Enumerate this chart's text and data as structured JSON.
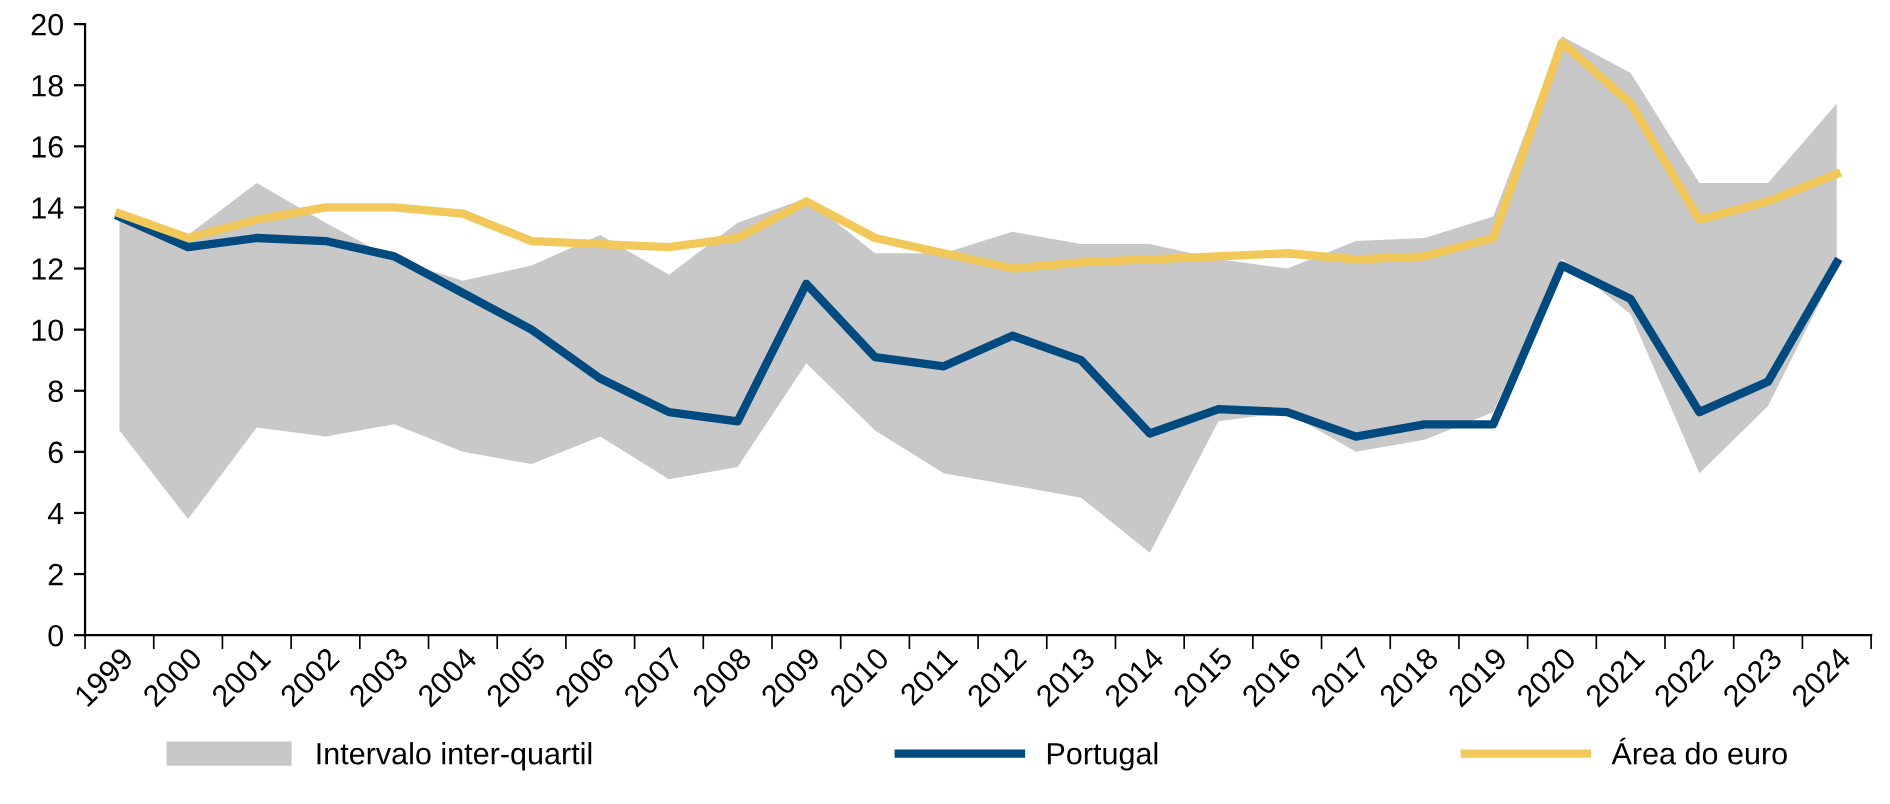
{
  "chart_data": {
    "type": "line",
    "categories": [
      "1999",
      "2000",
      "2001",
      "2002",
      "2003",
      "2004",
      "2005",
      "2006",
      "2007",
      "2008",
      "2009",
      "2010",
      "2011",
      "2012",
      "2013",
      "2014",
      "2015",
      "2016",
      "2017",
      "2018",
      "2019",
      "2020",
      "2021",
      "2022",
      "2023",
      "2024"
    ],
    "series": [
      {
        "name": "Intervalo inter-quartil",
        "type": "area",
        "color": "#c8c8c8",
        "values": [
          null,
          null,
          null,
          null,
          null,
          null,
          null,
          null,
          null,
          null,
          null,
          null,
          null,
          null,
          null,
          null,
          null,
          null,
          null,
          null,
          null,
          null,
          null,
          null,
          null,
          null
        ],
        "lower": [
          6.7,
          3.8,
          6.8,
          6.5,
          6.9,
          6.0,
          5.6,
          6.5,
          5.1,
          5.5,
          8.9,
          6.7,
          5.3,
          4.9,
          4.5,
          2.7,
          7.0,
          7.3,
          6.0,
          6.4,
          7.3,
          12.3,
          10.5,
          5.3,
          7.5,
          12.0
        ],
        "upper": [
          13.7,
          13.1,
          14.8,
          13.5,
          12.3,
          11.6,
          12.1,
          13.1,
          11.8,
          13.5,
          14.3,
          12.5,
          12.5,
          13.2,
          12.8,
          12.8,
          12.3,
          12.0,
          12.9,
          13.0,
          13.7,
          19.6,
          18.4,
          14.8,
          14.8,
          17.4
        ]
      },
      {
        "name": "Portugal",
        "color": "#004a7f",
        "values": [
          13.7,
          12.7,
          13.0,
          12.9,
          12.4,
          11.2,
          10.0,
          8.4,
          7.3,
          7.0,
          11.5,
          9.1,
          8.8,
          9.8,
          9.0,
          6.6,
          7.4,
          7.3,
          6.5,
          6.9,
          6.9,
          12.1,
          11.0,
          7.3,
          8.3,
          12.2
        ]
      },
      {
        "name": "Área do euro",
        "color": "#f2c85b",
        "values": [
          13.8,
          13.0,
          13.6,
          14.0,
          14.0,
          13.8,
          12.9,
          12.8,
          12.7,
          13.0,
          14.2,
          13.0,
          12.5,
          12.0,
          12.2,
          12.3,
          12.4,
          12.5,
          12.3,
          12.4,
          13.0,
          19.4,
          17.4,
          13.6,
          14.2,
          15.1
        ]
      }
    ],
    "ylim": [
      0,
      20
    ],
    "yticks": [
      0,
      2,
      4,
      6,
      8,
      10,
      12,
      14,
      16,
      18,
      20
    ],
    "grid": false,
    "legend": "bottom",
    "marker": "none",
    "line_style": "solid"
  }
}
